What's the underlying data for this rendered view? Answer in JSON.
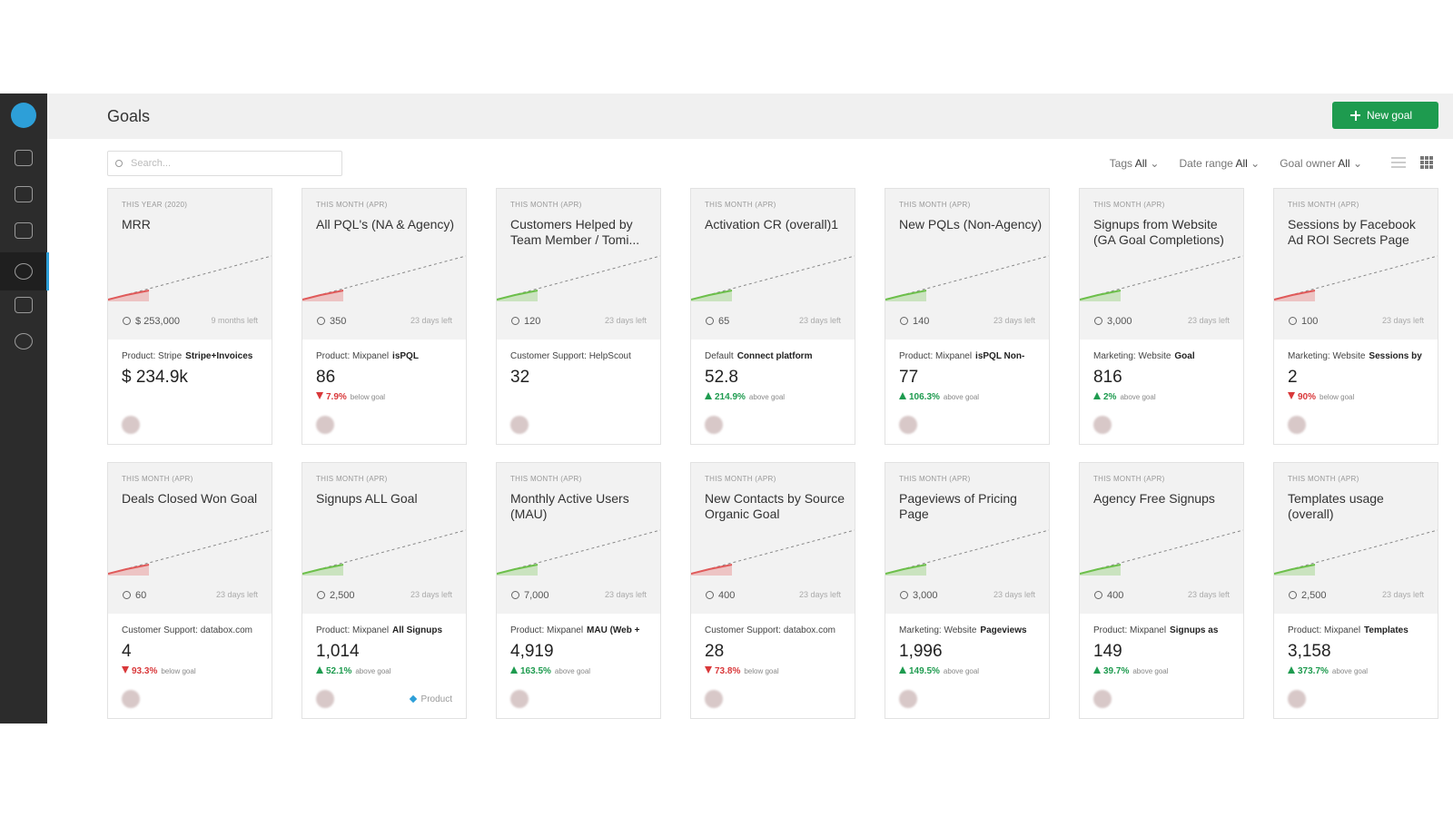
{
  "header": {
    "title": "Goals",
    "new_goal": "New goal"
  },
  "search_placeholder": "Search...",
  "filters": [
    {
      "label": "Tags",
      "value": "All"
    },
    {
      "label": "Date range",
      "value": "All"
    },
    {
      "label": "Goal owner",
      "value": "All"
    }
  ],
  "goals": [
    {
      "period": "THIS YEAR (2020)",
      "name": "MRR",
      "target": "$ 253,000",
      "time_left": "9 months left",
      "source": "Product: Stripe",
      "metric": "Stripe+Invoices",
      "value": "$ 234.9k",
      "color": "#e05a5a"
    },
    {
      "period": "THIS MONTH (APR)",
      "name": "All PQL's (NA & Agency)",
      "target": "350",
      "time_left": "23 days left",
      "source": "Product: Mixpanel",
      "metric": "isPQL",
      "value": "86",
      "change": "7.9%",
      "change_note": "below goal",
      "color": "#e05a5a"
    },
    {
      "period": "THIS MONTH (APR)",
      "name": "Customers Helped by Team Member / Tomi...",
      "target": "120",
      "time_left": "23 days left",
      "source": "Customer Support: HelpScout",
      "value": "32",
      "color": "#6cbf4a"
    },
    {
      "period": "THIS MONTH (APR)",
      "name": "Activation CR (overall)1",
      "target": "65",
      "time_left": "23 days left",
      "source": "Default",
      "metric": "Connect platform",
      "value": "52.8",
      "change": "214.9%",
      "change_note": "above goal",
      "color": "#6cbf4a"
    },
    {
      "period": "THIS MONTH (APR)",
      "name": "New PQLs (Non-Agency)",
      "target": "140",
      "time_left": "23 days left",
      "source": "Product: Mixpanel",
      "metric": "isPQL Non-",
      "value": "77",
      "change": "106.3%",
      "change_note": "above goal",
      "color": "#6cbf4a"
    },
    {
      "period": "THIS MONTH (APR)",
      "name": "Signups from Website (GA Goal Completions)",
      "target": "3,000",
      "time_left": "23 days left",
      "source": "Marketing: Website",
      "metric": "Goal",
      "value": "816",
      "change": "2%",
      "change_note": "above goal",
      "color": "#6cbf4a"
    },
    {
      "period": "THIS MONTH (APR)",
      "name": "Sessions by Facebook Ad ROI Secrets Page",
      "target": "100",
      "time_left": "23 days left",
      "source": "Marketing: Website",
      "metric": "Sessions by",
      "value": "2",
      "change": "90%",
      "change_note": "below goal",
      "color": "#e05a5a"
    },
    {
      "period": "THIS MONTH (APR)",
      "name": "Deals Closed Won Goal",
      "target": "60",
      "time_left": "23 days left",
      "source": "Customer Support: databox.com",
      "value": "4",
      "change": "93.3%",
      "change_note": "below goal",
      "color": "#e05a5a"
    },
    {
      "period": "THIS MONTH (APR)",
      "name": "Signups ALL Goal",
      "target": "2,500",
      "time_left": "23 days left",
      "source": "Product: Mixpanel",
      "metric": "All Signups",
      "value": "1,014",
      "change": "52.1%",
      "change_note": "above goal",
      "tag": "Product",
      "color": "#6cbf4a"
    },
    {
      "period": "THIS MONTH (APR)",
      "name": "Monthly Active Users (MAU)",
      "target": "7,000",
      "time_left": "23 days left",
      "source": "Product: Mixpanel",
      "metric": "MAU (Web +",
      "value": "4,919",
      "change": "163.5%",
      "change_note": "above goal",
      "color": "#6cbf4a"
    },
    {
      "period": "THIS MONTH (APR)",
      "name": "New Contacts by Source Organic Goal",
      "target": "400",
      "time_left": "23 days left",
      "source": "Customer Support: databox.com",
      "value": "28",
      "change": "73.8%",
      "change_note": "below goal",
      "color": "#e05a5a"
    },
    {
      "period": "THIS MONTH (APR)",
      "name": "Pageviews of Pricing Page",
      "target": "3,000",
      "time_left": "23 days left",
      "source": "Marketing: Website",
      "metric": "Pageviews",
      "value": "1,996",
      "change": "149.5%",
      "change_note": "above goal",
      "color": "#6cbf4a"
    },
    {
      "period": "THIS MONTH (APR)",
      "name": "Agency Free Signups",
      "target": "400",
      "time_left": "23 days left",
      "source": "Product: Mixpanel",
      "metric": "Signups as",
      "value": "149",
      "change": "39.7%",
      "change_note": "above goal",
      "color": "#6cbf4a"
    },
    {
      "period": "THIS MONTH (APR)",
      "name": "Templates usage (overall)",
      "target": "2,500",
      "time_left": "23 days left",
      "source": "Product: Mixpanel",
      "metric": "Templates",
      "value": "3,158",
      "change": "373.7%",
      "change_note": "above goal",
      "color": "#6cbf4a"
    }
  ]
}
